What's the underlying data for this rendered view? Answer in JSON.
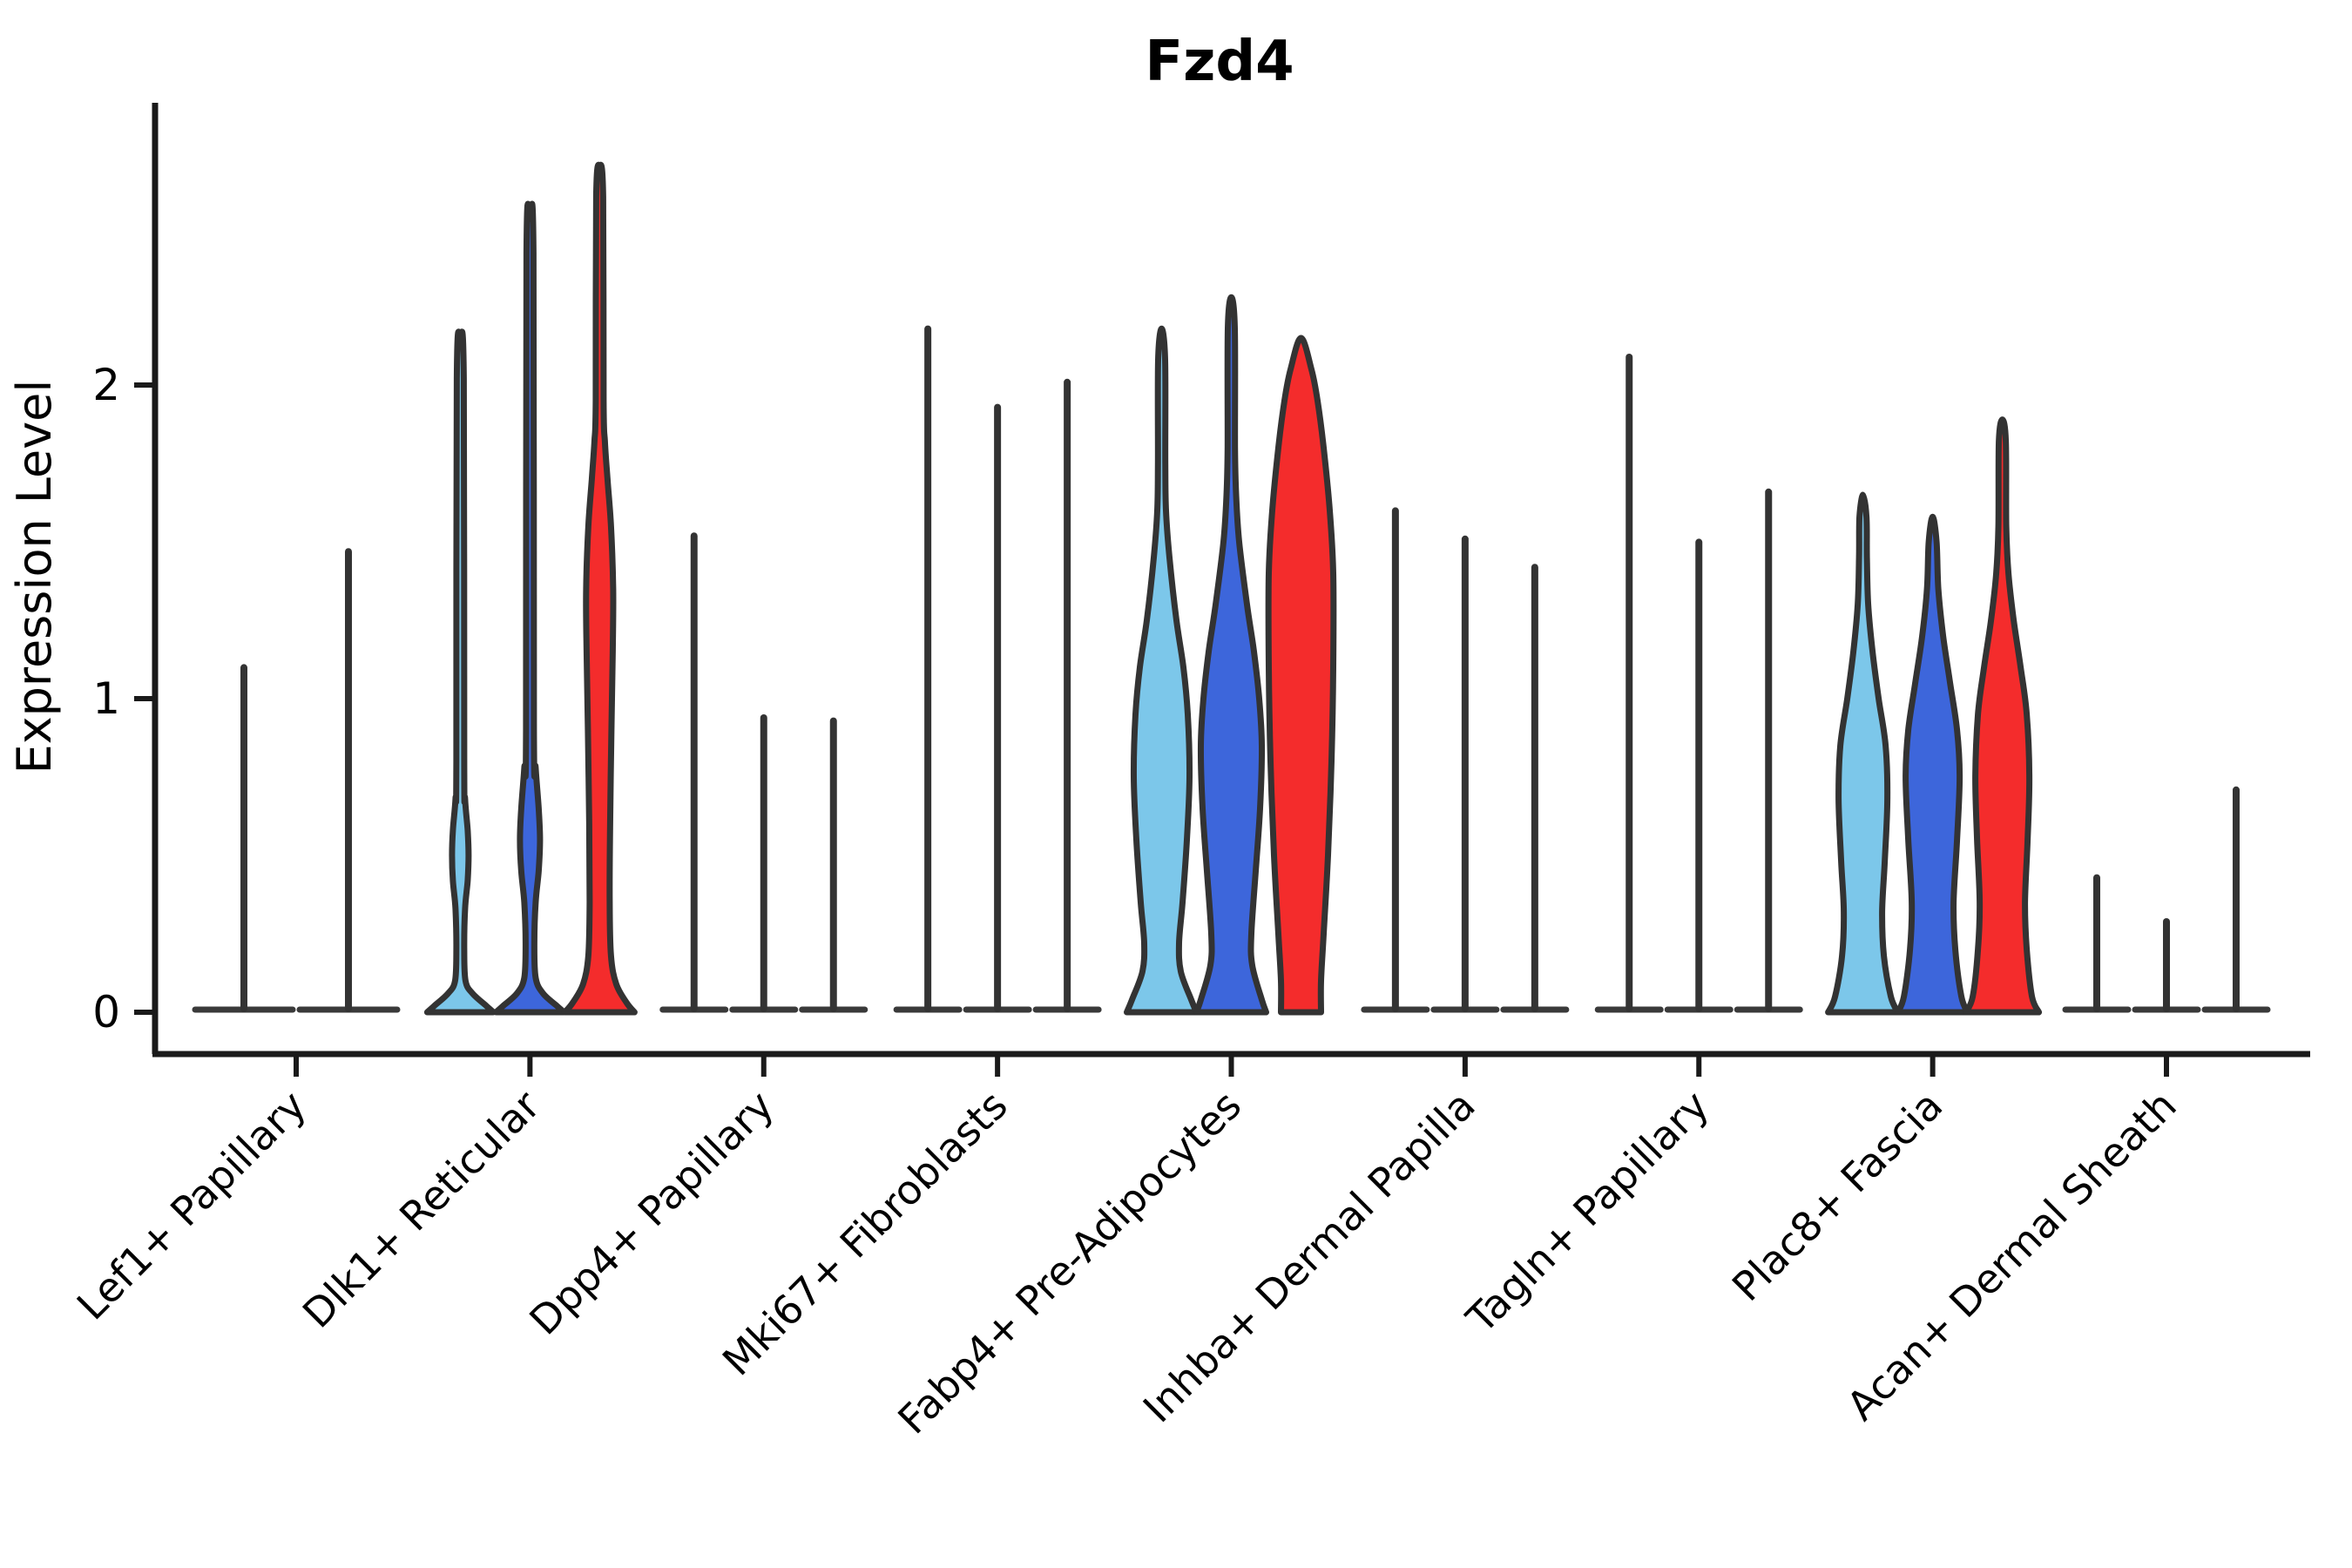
{
  "chart_data": {
    "type": "violin",
    "title": "Fzd4",
    "ylabel": "Expression Level",
    "xlabel": "",
    "yticks": [
      0,
      1,
      2
    ],
    "ylim": [
      -0.13,
      2.9
    ],
    "grid": false,
    "legend": "none",
    "categories": [
      "Lef1+ Papillary",
      "Dlk1+ Reticular",
      "Dpp4+ Papillary",
      "Mki67+ Fibroblasts",
      "Fabp4+ Pre-Adipocytes",
      "Inhba+ Dermal Papilla",
      "Tagln+ Papillary",
      "Plac8+ Fascia",
      "Acan+ Dermal Sheath"
    ],
    "series_colors": {
      "lightblue": "#7CC7EA",
      "blue": "#3D66DB",
      "red": "#F42C2C"
    },
    "outline_color": "#333333",
    "spine_color": "#1a1a1a",
    "violins": [
      {
        "category_index": 0,
        "offset": -60,
        "color": "lightblue",
        "shape": "spike",
        "peak": 1.11,
        "base_halfwidth": 60
      },
      {
        "category_index": 0,
        "offset": 60,
        "color": "blue",
        "shape": "spike",
        "peak": 1.48,
        "base_halfwidth": 60
      },
      {
        "category_index": 1,
        "offset": -80,
        "color": "lightblue",
        "shape": "density",
        "peak": 2.15,
        "profile": [
          [
            0,
            38
          ],
          [
            0.02,
            30
          ],
          [
            0.06,
            14
          ],
          [
            0.1,
            6
          ],
          [
            0.2,
            4.5
          ],
          [
            0.33,
            5.5
          ],
          [
            0.42,
            8.5
          ],
          [
            0.5,
            9.5
          ],
          [
            0.58,
            8.5
          ],
          [
            0.68,
            5.5
          ],
          [
            0.8,
            4.5
          ],
          [
            2.02,
            4
          ],
          [
            2.15,
            0
          ]
        ]
      },
      {
        "category_index": 1,
        "offset": 0,
        "color": "blue",
        "shape": "density",
        "peak": 2.53,
        "profile": [
          [
            0,
            39
          ],
          [
            0.02,
            31
          ],
          [
            0.06,
            15
          ],
          [
            0.11,
            6.5
          ],
          [
            0.22,
            5
          ],
          [
            0.35,
            6.5
          ],
          [
            0.45,
            10
          ],
          [
            0.55,
            11.5
          ],
          [
            0.65,
            10
          ],
          [
            0.78,
            6.5
          ],
          [
            0.9,
            4.5
          ],
          [
            2.42,
            4
          ],
          [
            2.53,
            0
          ]
        ]
      },
      {
        "category_index": 1,
        "offset": 80,
        "color": "red",
        "shape": "density",
        "peak": 2.7,
        "profile": [
          [
            0,
            40
          ],
          [
            0.03,
            31
          ],
          [
            0.09,
            19
          ],
          [
            0.18,
            13
          ],
          [
            0.35,
            11.5
          ],
          [
            0.6,
            12
          ],
          [
            0.9,
            13.5
          ],
          [
            1.15,
            15
          ],
          [
            1.35,
            15.5
          ],
          [
            1.55,
            13
          ],
          [
            1.7,
            9
          ],
          [
            1.82,
            6
          ],
          [
            1.95,
            4.5
          ],
          [
            2.6,
            4
          ],
          [
            2.7,
            0
          ]
        ]
      },
      {
        "category_index": 2,
        "offset": -80,
        "color": "lightblue",
        "shape": "spike",
        "peak": 1.53,
        "base_halfwidth": 40
      },
      {
        "category_index": 2,
        "offset": 0,
        "color": "blue",
        "shape": "spike",
        "peak": 0.95,
        "base_halfwidth": 40
      },
      {
        "category_index": 2,
        "offset": 80,
        "color": "red",
        "shape": "spike",
        "peak": 0.94,
        "base_halfwidth": 40
      },
      {
        "category_index": 3,
        "offset": -80,
        "color": "lightblue",
        "shape": "spike",
        "peak": 2.19,
        "base_halfwidth": 40
      },
      {
        "category_index": 3,
        "offset": 0,
        "color": "blue",
        "shape": "spike",
        "peak": 1.94,
        "base_halfwidth": 40
      },
      {
        "category_index": 3,
        "offset": 80,
        "color": "red",
        "shape": "spike",
        "peak": 2.02,
        "base_halfwidth": 40
      },
      {
        "category_index": 4,
        "offset": -80,
        "color": "lightblue",
        "shape": "density",
        "peak": 2.18,
        "profile": [
          [
            0,
            40
          ],
          [
            0.04,
            34
          ],
          [
            0.13,
            22
          ],
          [
            0.22,
            20
          ],
          [
            0.35,
            24
          ],
          [
            0.55,
            29
          ],
          [
            0.75,
            32
          ],
          [
            0.95,
            30
          ],
          [
            1.1,
            25
          ],
          [
            1.25,
            17
          ],
          [
            1.45,
            9
          ],
          [
            1.6,
            5
          ],
          [
            1.75,
            4.2
          ],
          [
            2.08,
            4
          ],
          [
            2.18,
            0
          ]
        ]
      },
      {
        "category_index": 4,
        "offset": 0,
        "color": "blue",
        "shape": "density",
        "peak": 2.28,
        "profile": [
          [
            0,
            40
          ],
          [
            0.04,
            35
          ],
          [
            0.15,
            24
          ],
          [
            0.25,
            23
          ],
          [
            0.45,
            28
          ],
          [
            0.65,
            33
          ],
          [
            0.85,
            35
          ],
          [
            1.0,
            32
          ],
          [
            1.15,
            26
          ],
          [
            1.3,
            18
          ],
          [
            1.5,
            9
          ],
          [
            1.65,
            5.5
          ],
          [
            1.8,
            4.2
          ],
          [
            2.18,
            4
          ],
          [
            2.28,
            0
          ]
        ]
      },
      {
        "category_index": 4,
        "offset": 80,
        "color": "red",
        "shape": "density",
        "peak": 2.15,
        "profile": [
          [
            0,
            23
          ],
          [
            0.1,
            23
          ],
          [
            0.25,
            26
          ],
          [
            0.5,
            31
          ],
          [
            0.8,
            35
          ],
          [
            1.1,
            37
          ],
          [
            1.4,
            37
          ],
          [
            1.6,
            33
          ],
          [
            1.8,
            26
          ],
          [
            1.95,
            19
          ],
          [
            2.05,
            12
          ],
          [
            2.15,
            0
          ]
        ]
      },
      {
        "category_index": 5,
        "offset": -80,
        "color": "lightblue",
        "shape": "spike",
        "peak": 1.61,
        "base_halfwidth": 40
      },
      {
        "category_index": 5,
        "offset": 0,
        "color": "blue",
        "shape": "spike",
        "peak": 1.52,
        "base_halfwidth": 40
      },
      {
        "category_index": 5,
        "offset": 80,
        "color": "red",
        "shape": "spike",
        "peak": 1.43,
        "base_halfwidth": 40
      },
      {
        "category_index": 6,
        "offset": -80,
        "color": "lightblue",
        "shape": "spike",
        "peak": 2.1,
        "base_halfwidth": 40
      },
      {
        "category_index": 6,
        "offset": 0,
        "color": "blue",
        "shape": "spike",
        "peak": 1.51,
        "base_halfwidth": 40
      },
      {
        "category_index": 6,
        "offset": 80,
        "color": "red",
        "shape": "spike",
        "peak": 1.67,
        "base_halfwidth": 40
      },
      {
        "category_index": 7,
        "offset": -80,
        "color": "lightblue",
        "shape": "density",
        "peak": 1.65,
        "profile": [
          [
            0,
            40
          ],
          [
            0.05,
            32
          ],
          [
            0.18,
            24
          ],
          [
            0.32,
            22
          ],
          [
            0.48,
            25
          ],
          [
            0.68,
            28
          ],
          [
            0.85,
            26
          ],
          [
            1.0,
            18
          ],
          [
            1.15,
            11
          ],
          [
            1.3,
            6
          ],
          [
            1.45,
            4.5
          ],
          [
            1.58,
            4
          ],
          [
            1.65,
            0
          ]
        ]
      },
      {
        "category_index": 7,
        "offset": 0,
        "color": "blue",
        "shape": "density",
        "peak": 1.58,
        "profile": [
          [
            0,
            40
          ],
          [
            0.05,
            33
          ],
          [
            0.2,
            26
          ],
          [
            0.35,
            24
          ],
          [
            0.55,
            28
          ],
          [
            0.75,
            31
          ],
          [
            0.9,
            28
          ],
          [
            1.05,
            20
          ],
          [
            1.2,
            12
          ],
          [
            1.35,
            6.5
          ],
          [
            1.5,
            4.5
          ],
          [
            1.58,
            0
          ]
        ]
      },
      {
        "category_index": 7,
        "offset": 80,
        "color": "red",
        "shape": "density",
        "peak": 1.89,
        "profile": [
          [
            0,
            42
          ],
          [
            0.05,
            34
          ],
          [
            0.2,
            28
          ],
          [
            0.35,
            26
          ],
          [
            0.55,
            29
          ],
          [
            0.75,
            31
          ],
          [
            0.95,
            28
          ],
          [
            1.1,
            21
          ],
          [
            1.25,
            13
          ],
          [
            1.4,
            7
          ],
          [
            1.55,
            4.5
          ],
          [
            1.82,
            4
          ],
          [
            1.89,
            0
          ]
        ]
      },
      {
        "category_index": 8,
        "offset": -80,
        "color": "lightblue",
        "shape": "spike",
        "peak": 0.44,
        "base_halfwidth": 40
      },
      {
        "category_index": 8,
        "offset": 0,
        "color": "blue",
        "shape": "spike",
        "peak": 0.3,
        "base_halfwidth": 40
      },
      {
        "category_index": 8,
        "offset": 80,
        "color": "red",
        "shape": "spike",
        "peak": 0.72,
        "base_halfwidth": 40
      }
    ]
  }
}
